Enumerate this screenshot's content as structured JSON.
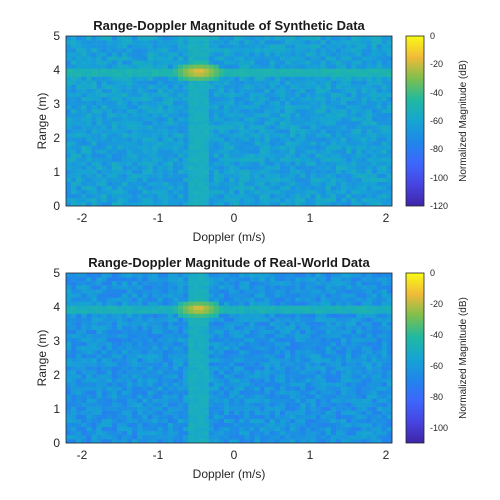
{
  "colors": {
    "background": "#ffffff",
    "axis": "#262626"
  },
  "chart_data": [
    {
      "type": "heatmap",
      "title": "Range-Doppler Magnitude of Synthetic Data",
      "xlabel": "Doppler (m/s)",
      "ylabel": "Range (m)",
      "xlim": [
        -2.2,
        2.1
      ],
      "ylim": [
        0,
        5
      ],
      "xticks": [
        "-2",
        "-1",
        "0",
        "1",
        "2"
      ],
      "yticks": [
        "0",
        "1",
        "2",
        "3",
        "4",
        "5"
      ],
      "colormap": "parula",
      "colorbar": {
        "label": "Normalized Magnitude (dB)",
        "range": [
          -120,
          0
        ],
        "ticks": [
          "0",
          "-20",
          "-40",
          "-60",
          "-80",
          "-100",
          "-120"
        ]
      },
      "background_level_db": -63,
      "target": {
        "doppler": -0.45,
        "range": 3.95,
        "peak_db": -12
      },
      "range_ridge_db": -50,
      "doppler_ridge_db": -54,
      "grid": false
    },
    {
      "type": "heatmap",
      "title": "Range-Doppler Magnitude of Real-World Data",
      "xlabel": "Doppler (m/s)",
      "ylabel": "Range (m)",
      "xlim": [
        -2.2,
        2.1
      ],
      "ylim": [
        0,
        5
      ],
      "xticks": [
        "-2",
        "-1",
        "0",
        "1",
        "2"
      ],
      "yticks": [
        "0",
        "1",
        "2",
        "3",
        "4",
        "5"
      ],
      "colormap": "parula",
      "colorbar": {
        "label": "Normalized Magnitude (dB)",
        "range": [
          -110,
          0
        ],
        "ticks": [
          "0",
          "-20",
          "-40",
          "-60",
          "-80",
          "-100"
        ]
      },
      "background_level_db": -63,
      "target": {
        "doppler": -0.45,
        "range": 3.95,
        "peak_db": -12
      },
      "range_ridge_db": -48,
      "doppler_ridge_db": -50,
      "grid": false
    }
  ]
}
